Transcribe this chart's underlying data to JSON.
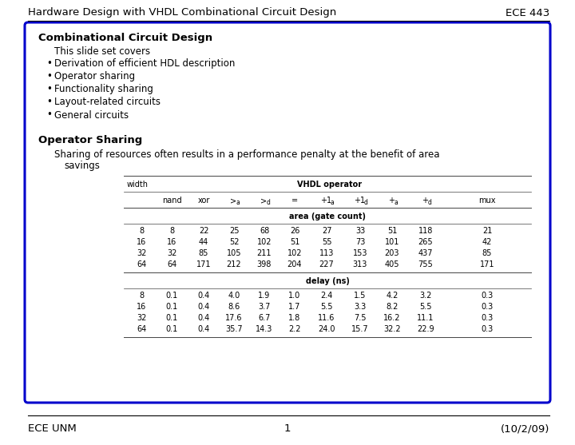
{
  "header_left": "Hardware Design with VHDL Combinational Circuit Design",
  "header_right": "ECE 443",
  "footer_left": "ECE UNM",
  "footer_center": "1",
  "footer_right": "(10/2/09)",
  "box_title": "Combinational Circuit Design",
  "intro_text": "This slide set covers",
  "bullets": [
    "Derivation of efficient HDL description",
    "Operator sharing",
    "Functionality sharing",
    "Layout-related circuits",
    "General circuits"
  ],
  "section_title": "Operator Sharing",
  "section_line1": "Sharing of resources often results in a performance penalty at the benefit of area",
  "section_line2": "savings",
  "area_label": "area (gate count)",
  "area_data": [
    [
      "8",
      "8",
      "22",
      "25",
      "68",
      "26",
      "27",
      "33",
      "51",
      "118",
      "21"
    ],
    [
      "16",
      "16",
      "44",
      "52",
      "102",
      "51",
      "55",
      "73",
      "101",
      "265",
      "42"
    ],
    [
      "32",
      "32",
      "85",
      "105",
      "211",
      "102",
      "113",
      "153",
      "203",
      "437",
      "85"
    ],
    [
      "64",
      "64",
      "171",
      "212",
      "398",
      "204",
      "227",
      "313",
      "405",
      "755",
      "171"
    ]
  ],
  "delay_label": "delay (ns)",
  "delay_data": [
    [
      "8",
      "0.1",
      "0.4",
      "4.0",
      "1.9",
      "1.0",
      "2.4",
      "1.5",
      "4.2",
      "3.2",
      "0.3"
    ],
    [
      "16",
      "0.1",
      "0.4",
      "8.6",
      "3.7",
      "1.7",
      "5.5",
      "3.3",
      "8.2",
      "5.5",
      "0.3"
    ],
    [
      "32",
      "0.1",
      "0.4",
      "17.6",
      "6.7",
      "1.8",
      "11.6",
      "7.5",
      "16.2",
      "11.1",
      "0.3"
    ],
    [
      "64",
      "0.1",
      "0.4",
      "35.7",
      "14.3",
      "2.2",
      "24.0",
      "15.7",
      "32.2",
      "22.9",
      "0.3"
    ]
  ],
  "bg_color": "#ffffff",
  "box_border_color": "#0000cc",
  "text_color": "#000000",
  "header_fontsize": 9.5,
  "title_fontsize": 9.5,
  "body_fontsize": 8.5,
  "table_fontsize": 7.0,
  "footer_fontsize": 9.5
}
